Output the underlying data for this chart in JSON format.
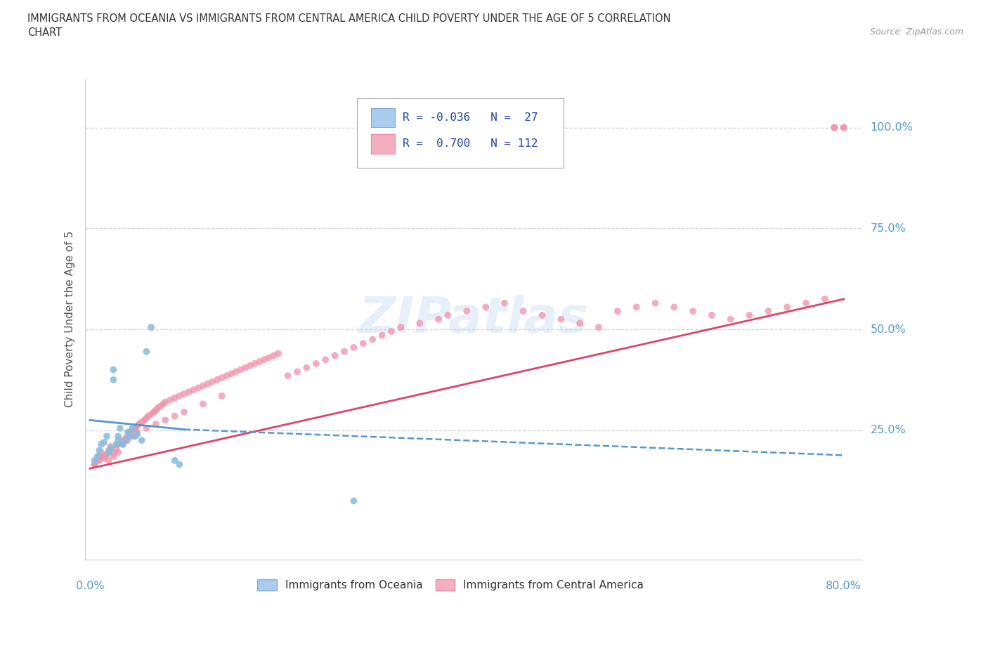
{
  "title_line1": "IMMIGRANTS FROM OCEANIA VS IMMIGRANTS FROM CENTRAL AMERICA CHILD POVERTY UNDER THE AGE OF 5 CORRELATION",
  "title_line2": "CHART",
  "source": "Source: ZipAtlas.com",
  "ylabel": "Child Poverty Under the Age of 5",
  "watermark": "ZIPatlas",
  "xlim_min": -0.005,
  "xlim_max": 0.82,
  "ylim_min": -0.07,
  "ylim_max": 1.12,
  "y_ticks": [
    0.25,
    0.5,
    0.75,
    1.0
  ],
  "y_tick_labels": [
    "25.0%",
    "50.0%",
    "75.0%",
    "100.0%"
  ],
  "x_start_label": "0.0%",
  "x_end_label": "80.0%",
  "oceania_color": "#88bbdd",
  "central_color": "#f090a8",
  "trend_oceania_color": "#5599cc",
  "trend_central_color": "#dd4466",
  "legend_blue_color": "#aaccee",
  "legend_pink_color": "#f4b0c0",
  "legend_text_color": "#2244aa",
  "label_color": "#5599cc",
  "grid_color": "#cccccc",
  "title_color": "#333333",
  "source_color": "#999999",
  "bg_color": "#ffffff",
  "oceania_R": -0.036,
  "oceania_N": 27,
  "central_R": 0.7,
  "central_N": 112,
  "legend_oceania_label": "Immigrants from Oceania",
  "legend_central_label": "Immigrants from Central America",
  "oceania_x": [
    0.005,
    0.008,
    0.01,
    0.012,
    0.015,
    0.018,
    0.02,
    0.022,
    0.025,
    0.025,
    0.028,
    0.03,
    0.03,
    0.032,
    0.035,
    0.038,
    0.04,
    0.042,
    0.045,
    0.048,
    0.05,
    0.055,
    0.06,
    0.065,
    0.09,
    0.095,
    0.28
  ],
  "oceania_y": [
    0.175,
    0.185,
    0.2,
    0.215,
    0.22,
    0.235,
    0.195,
    0.205,
    0.375,
    0.4,
    0.215,
    0.225,
    0.235,
    0.255,
    0.215,
    0.225,
    0.245,
    0.235,
    0.255,
    0.235,
    0.24,
    0.225,
    0.445,
    0.505,
    0.175,
    0.165,
    0.075
  ],
  "central_x": [
    0.005,
    0.008,
    0.01,
    0.012,
    0.015,
    0.018,
    0.02,
    0.022,
    0.025,
    0.028,
    0.03,
    0.032,
    0.035,
    0.038,
    0.04,
    0.042,
    0.045,
    0.048,
    0.05,
    0.052,
    0.055,
    0.058,
    0.06,
    0.062,
    0.065,
    0.068,
    0.07,
    0.072,
    0.075,
    0.078,
    0.08,
    0.085,
    0.09,
    0.095,
    0.1,
    0.105,
    0.11,
    0.115,
    0.12,
    0.125,
    0.13,
    0.135,
    0.14,
    0.145,
    0.15,
    0.155,
    0.16,
    0.165,
    0.17,
    0.175,
    0.18,
    0.185,
    0.19,
    0.195,
    0.2,
    0.21,
    0.22,
    0.23,
    0.24,
    0.25,
    0.26,
    0.27,
    0.28,
    0.29,
    0.3,
    0.31,
    0.32,
    0.33,
    0.35,
    0.37,
    0.38,
    0.4,
    0.42,
    0.44,
    0.46,
    0.48,
    0.5,
    0.52,
    0.54,
    0.56,
    0.58,
    0.6,
    0.62,
    0.64,
    0.66,
    0.68,
    0.7,
    0.72,
    0.74,
    0.76,
    0.78,
    0.79,
    0.79,
    0.8,
    0.8,
    0.005,
    0.01,
    0.015,
    0.02,
    0.025,
    0.03,
    0.035,
    0.04,
    0.045,
    0.05,
    0.06,
    0.07,
    0.08,
    0.09,
    0.1,
    0.12,
    0.14
  ],
  "central_y": [
    0.165,
    0.175,
    0.185,
    0.195,
    0.18,
    0.19,
    0.2,
    0.21,
    0.195,
    0.205,
    0.215,
    0.22,
    0.225,
    0.23,
    0.235,
    0.245,
    0.25,
    0.255,
    0.26,
    0.265,
    0.27,
    0.275,
    0.28,
    0.285,
    0.29,
    0.295,
    0.3,
    0.305,
    0.31,
    0.315,
    0.32,
    0.325,
    0.33,
    0.335,
    0.34,
    0.345,
    0.35,
    0.355,
    0.36,
    0.365,
    0.37,
    0.375,
    0.38,
    0.385,
    0.39,
    0.395,
    0.4,
    0.405,
    0.41,
    0.415,
    0.42,
    0.425,
    0.43,
    0.435,
    0.44,
    0.385,
    0.395,
    0.405,
    0.415,
    0.425,
    0.435,
    0.445,
    0.455,
    0.465,
    0.475,
    0.485,
    0.495,
    0.505,
    0.515,
    0.525,
    0.535,
    0.545,
    0.555,
    0.565,
    0.545,
    0.535,
    0.525,
    0.515,
    0.505,
    0.545,
    0.555,
    0.565,
    0.555,
    0.545,
    0.535,
    0.525,
    0.535,
    0.545,
    0.555,
    0.565,
    0.575,
    1.0,
    1.0,
    1.0,
    1.0,
    0.165,
    0.175,
    0.185,
    0.175,
    0.185,
    0.195,
    0.215,
    0.225,
    0.235,
    0.245,
    0.255,
    0.265,
    0.275,
    0.285,
    0.295,
    0.315,
    0.335
  ]
}
